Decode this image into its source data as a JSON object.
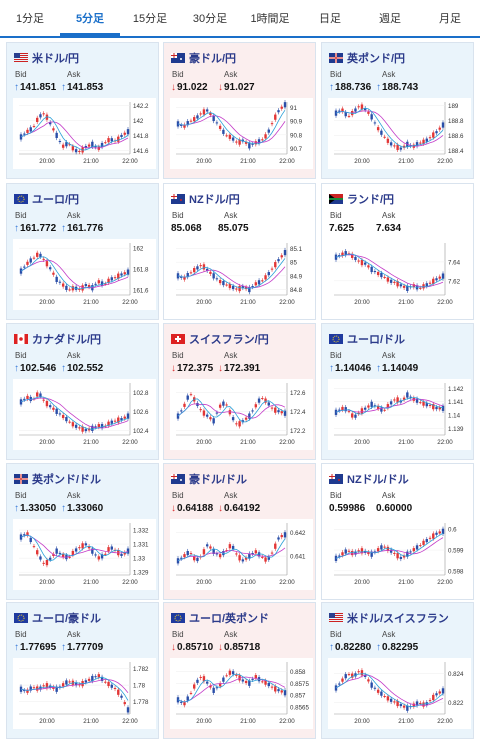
{
  "tabs": [
    {
      "label": "1分足",
      "active": false
    },
    {
      "label": "5分足",
      "active": true
    },
    {
      "label": "15分足",
      "active": false
    },
    {
      "label": "30分足",
      "active": false
    },
    {
      "label": "1時間足",
      "active": false
    },
    {
      "label": "日足",
      "active": false
    },
    {
      "label": "週足",
      "active": false
    },
    {
      "label": "月足",
      "active": false
    }
  ],
  "colors": {
    "up": "#3a7ad8",
    "down": "#d93030",
    "candle_up": "#e23636",
    "candle_down": "#2a4ea8",
    "ma": "#c33cc8",
    "trend": "#2aa0d8",
    "card_up_bg": "#eaf4fb",
    "card_down_bg": "#fbeeee",
    "card_flat_bg": "#ffffff"
  },
  "bid_label": "Bid",
  "ask_label": "Ask",
  "x_ticks": [
    "20:00",
    "21:00",
    "22:00"
  ],
  "cards": [
    {
      "pair": "米ドル/円",
      "flag": "us-flag",
      "dir": "up",
      "bid": "141.851",
      "ask": "141.853",
      "bid_dir": "up",
      "ask_dir": "up",
      "y_ticks": [
        "142.2",
        "142",
        "141.8",
        "141.6"
      ],
      "ylim": [
        141.55,
        142.25
      ],
      "series": [
        141.78,
        141.85,
        141.9,
        142.05,
        142.1,
        141.95,
        141.8,
        141.65,
        141.7,
        141.6,
        141.58,
        141.65,
        141.68,
        141.62,
        141.7,
        141.75,
        141.72,
        141.8,
        141.85
      ]
    },
    {
      "pair": "豪ドル/円",
      "flag": "au-flag",
      "dir": "down",
      "bid": "91.022",
      "ask": "91.027",
      "bid_dir": "down",
      "ask_dir": "down",
      "y_ticks": [
        "91",
        "90.9",
        "90.8",
        "90.7"
      ],
      "ylim": [
        90.66,
        91.04
      ],
      "series": [
        90.88,
        90.86,
        90.9,
        90.92,
        90.96,
        90.98,
        90.92,
        90.86,
        90.8,
        90.78,
        90.74,
        90.76,
        90.72,
        90.74,
        90.76,
        90.8,
        90.9,
        90.98,
        91.02
      ]
    },
    {
      "pair": "英ポンド/円",
      "flag": "gb-flag",
      "dir": "up",
      "bid": "188.736",
      "ask": "188.743",
      "bid_dir": "up",
      "ask_dir": "up",
      "y_ticks": [
        "189",
        "188.8",
        "188.6",
        "188.4"
      ],
      "ylim": [
        188.35,
        189.05
      ],
      "series": [
        188.9,
        188.95,
        188.85,
        188.92,
        189.0,
        188.95,
        188.85,
        188.7,
        188.6,
        188.5,
        188.45,
        188.42,
        188.48,
        188.45,
        188.5,
        188.52,
        188.58,
        188.65,
        188.74
      ]
    },
    {
      "pair": "ユーロ/円",
      "flag": "eu-flag",
      "dir": "up",
      "bid": "161.772",
      "ask": "161.776",
      "bid_dir": "up",
      "ask_dir": "up",
      "y_ticks": [
        "162",
        "161.8",
        "161.6"
      ],
      "ylim": [
        161.55,
        162.05
      ],
      "series": [
        161.78,
        161.85,
        161.9,
        161.95,
        161.88,
        161.8,
        161.7,
        161.65,
        161.6,
        161.62,
        161.6,
        161.65,
        161.62,
        161.68,
        161.65,
        161.7,
        161.72,
        161.75,
        161.77
      ]
    },
    {
      "pair": "NZドル/円",
      "flag": "nz-flag",
      "dir": "flat",
      "bid": "85.068",
      "ask": "85.075",
      "bid_dir": "none",
      "ask_dir": "none",
      "y_ticks": [
        "85.1",
        "85",
        "84.9",
        "84.8"
      ],
      "ylim": [
        84.76,
        85.14
      ],
      "series": [
        84.9,
        84.88,
        84.92,
        84.95,
        84.98,
        84.94,
        84.9,
        84.86,
        84.84,
        84.82,
        84.8,
        84.82,
        84.8,
        84.84,
        84.86,
        84.9,
        84.96,
        85.02,
        85.07
      ]
    },
    {
      "pair": "ランド/円",
      "flag": "za-flag",
      "dir": "flat",
      "bid": "7.625",
      "ask": "7.634",
      "bid_dir": "none",
      "ask_dir": "none",
      "y_ticks": [
        "7.64",
        "7.62"
      ],
      "ylim": [
        7.605,
        7.66
      ],
      "series": [
        7.645,
        7.648,
        7.65,
        7.645,
        7.64,
        7.638,
        7.632,
        7.628,
        7.625,
        7.62,
        7.618,
        7.615,
        7.612,
        7.615,
        7.612,
        7.615,
        7.618,
        7.622,
        7.625
      ]
    },
    {
      "pair": "カナダドル/円",
      "flag": "ca-flag",
      "dir": "up",
      "bid": "102.546",
      "ask": "102.552",
      "bid_dir": "up",
      "ask_dir": "up",
      "y_ticks": [
        "102.8",
        "102.6",
        "102.4"
      ],
      "ylim": [
        102.35,
        102.9
      ],
      "series": [
        102.7,
        102.75,
        102.72,
        102.8,
        102.7,
        102.65,
        102.6,
        102.55,
        102.5,
        102.45,
        102.42,
        102.4,
        102.42,
        102.45,
        102.44,
        102.48,
        102.5,
        102.52,
        102.55
      ]
    },
    {
      "pair": "スイスフラン/円",
      "flag": "ch-flag",
      "dir": "down",
      "bid": "172.375",
      "ask": "172.391",
      "bid_dir": "down",
      "ask_dir": "down",
      "y_ticks": [
        "172.6",
        "172.4",
        "172.2"
      ],
      "ylim": [
        172.15,
        172.7
      ],
      "series": [
        172.35,
        172.45,
        172.6,
        172.5,
        172.4,
        172.35,
        172.3,
        172.45,
        172.5,
        172.35,
        172.25,
        172.3,
        172.35,
        172.45,
        172.55,
        172.5,
        172.42,
        172.4,
        172.38
      ]
    },
    {
      "pair": "ユーロ/ドル",
      "flag": "eu-flag",
      "dir": "up",
      "bid": "1.14046",
      "ask": "1.14049",
      "bid_dir": "up",
      "ask_dir": "up",
      "y_ticks": [
        "1.142",
        "1.141",
        "1.14",
        "1.139"
      ],
      "ylim": [
        1.1385,
        1.1424
      ],
      "series": [
        1.1402,
        1.1405,
        1.1404,
        1.1398,
        1.1402,
        1.1405,
        1.1408,
        1.1406,
        1.1403,
        1.1408,
        1.1412,
        1.141,
        1.1415,
        1.1412,
        1.141,
        1.1408,
        1.1407,
        1.1405,
        1.1405
      ]
    },
    {
      "pair": "英ポンド/ドル",
      "flag": "gb-flag",
      "dir": "up",
      "bid": "1.33050",
      "ask": "1.33060",
      "bid_dir": "up",
      "ask_dir": "up",
      "y_ticks": [
        "1.332",
        "1.331",
        "1.33",
        "1.329"
      ],
      "ylim": [
        1.3288,
        1.3325
      ],
      "series": [
        1.3315,
        1.3318,
        1.331,
        1.3302,
        1.3295,
        1.33,
        1.3305,
        1.3302,
        1.33,
        1.3305,
        1.3308,
        1.331,
        1.3305,
        1.33,
        1.3302,
        1.3308,
        1.3305,
        1.3302,
        1.3305
      ]
    },
    {
      "pair": "豪ドル/ドル",
      "flag": "au-flag",
      "dir": "down",
      "bid": "0.64188",
      "ask": "0.64192",
      "bid_dir": "down",
      "ask_dir": "down",
      "y_ticks": [
        "0.642",
        "0.641"
      ],
      "ylim": [
        0.6402,
        0.6424
      ],
      "series": [
        0.6408,
        0.641,
        0.6412,
        0.6408,
        0.641,
        0.6415,
        0.6412,
        0.641,
        0.6412,
        0.6415,
        0.641,
        0.6408,
        0.641,
        0.6412,
        0.641,
        0.6408,
        0.6412,
        0.6418,
        0.6419
      ]
    },
    {
      "pair": "NZドル/ドル",
      "flag": "nz-flag",
      "dir": "flat",
      "bid": "0.59986",
      "ask": "0.60000",
      "bid_dir": "none",
      "ask_dir": "none",
      "y_ticks": [
        "0.6",
        "0.599",
        "0.598"
      ],
      "ylim": [
        0.5978,
        0.6003
      ],
      "series": [
        0.5986,
        0.5988,
        0.599,
        0.5988,
        0.599,
        0.5989,
        0.5988,
        0.599,
        0.5992,
        0.599,
        0.5988,
        0.5986,
        0.5988,
        0.599,
        0.5992,
        0.5994,
        0.5996,
        0.5998,
        0.5999
      ]
    },
    {
      "pair": "ユーロ/豪ドル",
      "flag": "eu-flag",
      "dir": "up",
      "bid": "1.77695",
      "ask": "1.77709",
      "bid_dir": "up",
      "ask_dir": "up",
      "y_ticks": [
        "1.782",
        "1.78",
        "1.778"
      ],
      "ylim": [
        1.7765,
        1.7828
      ],
      "series": [
        1.7795,
        1.7792,
        1.7798,
        1.7795,
        1.78,
        1.7798,
        1.7795,
        1.78,
        1.7805,
        1.7802,
        1.78,
        1.7805,
        1.7808,
        1.7812,
        1.7805,
        1.78,
        1.7795,
        1.7785,
        1.777
      ]
    },
    {
      "pair": "ユーロ/英ポンド",
      "flag": "eu-flag",
      "dir": "down",
      "bid": "0.85710",
      "ask": "0.85718",
      "bid_dir": "down",
      "ask_dir": "down",
      "y_ticks": [
        "0.858",
        "0.8575",
        "0.857",
        "0.8565"
      ],
      "ylim": [
        0.8562,
        0.8584
      ],
      "series": [
        0.8568,
        0.8566,
        0.857,
        0.8575,
        0.8578,
        0.8575,
        0.8572,
        0.8574,
        0.8578,
        0.858,
        0.8578,
        0.8576,
        0.8575,
        0.8578,
        0.8576,
        0.8575,
        0.8573,
        0.8572,
        0.8571
      ]
    },
    {
      "pair": "米ドル/スイスフラン",
      "flag": "us-flag",
      "dir": "up",
      "bid": "0.82280",
      "ask": "0.82295",
      "bid_dir": "up",
      "ask_dir": "up",
      "y_ticks": [
        "0.824",
        "0.822"
      ],
      "ylim": [
        0.8212,
        0.8248
      ],
      "series": [
        0.823,
        0.8235,
        0.824,
        0.8238,
        0.8242,
        0.8238,
        0.8232,
        0.8228,
        0.8225,
        0.8222,
        0.822,
        0.8218,
        0.8216,
        0.8218,
        0.822,
        0.8218,
        0.8222,
        0.8226,
        0.8228
      ]
    }
  ]
}
